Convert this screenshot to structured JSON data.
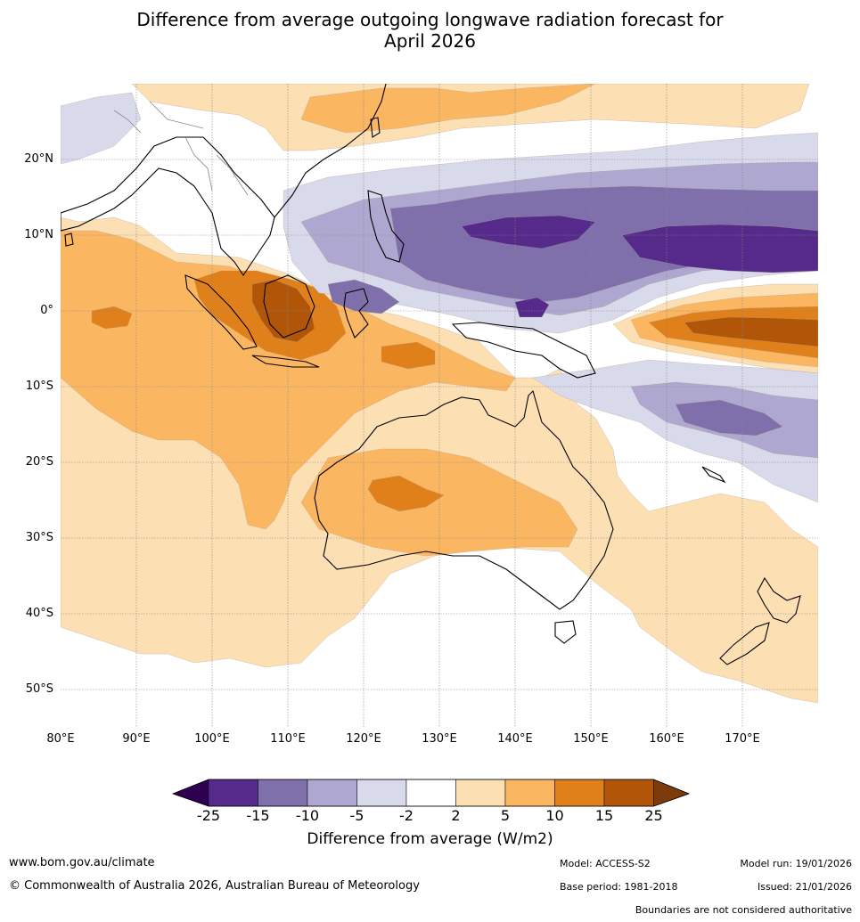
{
  "title": {
    "line1": "Difference from average outgoing longwave radiation forecast for",
    "line2": "April 2026"
  },
  "map": {
    "lat_labels": [
      "20°N",
      "10°N",
      "0°",
      "10°S",
      "20°S",
      "30°S",
      "40°S",
      "50°S"
    ],
    "lon_labels": [
      "80°E",
      "90°E",
      "100°E",
      "110°E",
      "120°E",
      "130°E",
      "140°E",
      "150°E",
      "160°E",
      "170°E"
    ],
    "colors": {
      "m25": "#562a8a",
      "m15": "#7f6fab",
      "m10": "#aea8d0",
      "m5": "#d9d9ec",
      "zero": "#ffffff",
      "p2": "#fddfb4",
      "p5": "#fbb661",
      "p10": "#e0801a",
      "p15": "#b15608",
      "low_end": "#2d0050",
      "high_end": "#7d3a0a",
      "coast": "#000000",
      "border": "#888888"
    }
  },
  "colorbar": {
    "ticks": [
      "-25",
      "-15",
      "-10",
      "-5",
      "-2",
      "2",
      "5",
      "10",
      "15",
      "25"
    ],
    "label": "Difference from average (W/m2)"
  },
  "footer": {
    "url": "www.bom.gov.au/climate",
    "copyright": "© Commonwealth of Australia 2026, Australian Bureau of Meteorology",
    "model": "Model: ACCESS-S2",
    "model_run": "Model run: 19/01/2026",
    "base_period": "Base period: 1981-2018",
    "issued": "Issued: 21/01/2026",
    "disclaimer": "Boundaries are not considered authoritative"
  }
}
